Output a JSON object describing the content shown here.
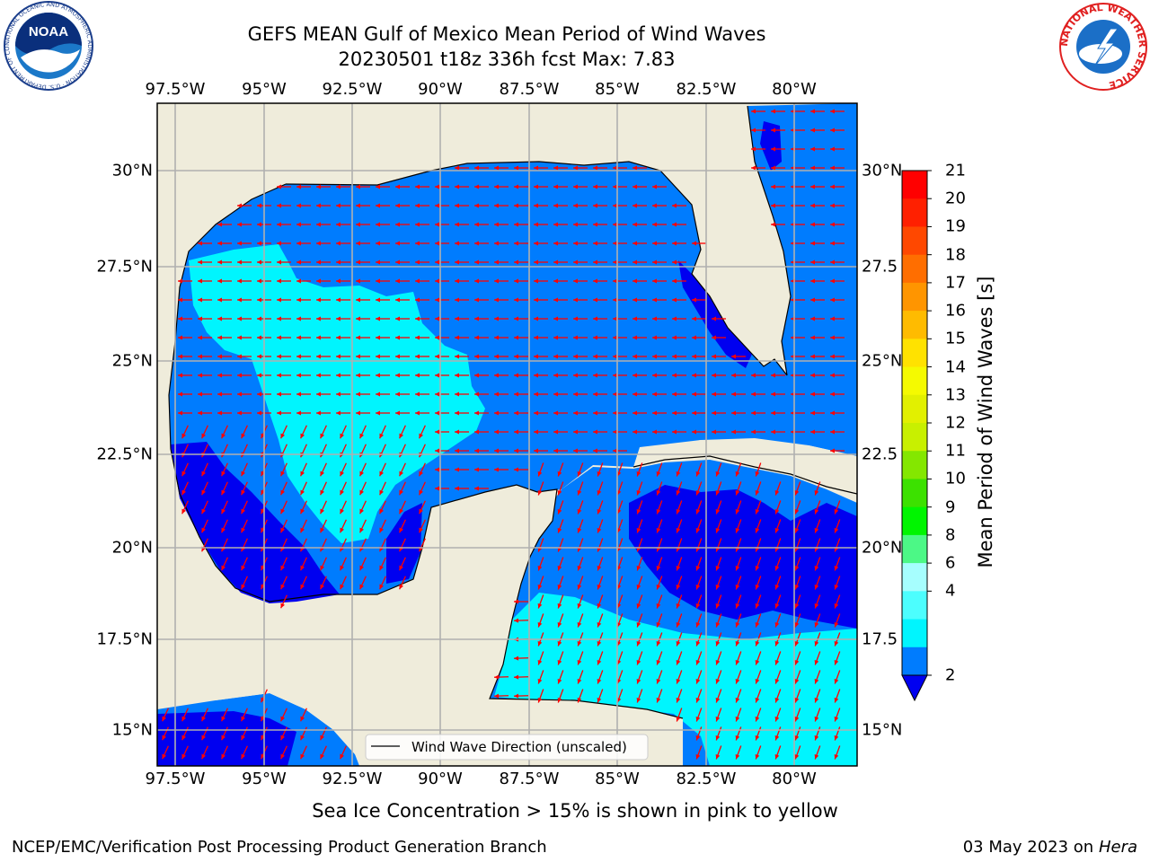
{
  "title": {
    "line1": "GEFS MEAN Gulf of Mexico Mean Period of Wind Waves",
    "line2": "20230501 t18z 336h fcst   Max: 7.83"
  },
  "axes": {
    "lon_ticks": [
      "97.5°W",
      "95°W",
      "92.5°W",
      "90°W",
      "87.5°W",
      "85°W",
      "82.5°W",
      "80°W"
    ],
    "lat_ticks_left": [
      "30°N",
      "27.5°N",
      "25°N",
      "22.5°N",
      "20°N",
      "17.5°N",
      "15°N"
    ],
    "lat_ticks_right": [
      "30°N",
      "27.5",
      "25°N",
      "22.5",
      "20°N",
      "17.5",
      "15°N"
    ]
  },
  "legend": {
    "label": "Wind Wave Direction (unscaled)"
  },
  "colorbar": {
    "title": "Mean Period of Wind Waves [s]",
    "labels": [
      "21",
      "20",
      "19",
      "18",
      "17",
      "16",
      "15",
      "14",
      "13",
      "12",
      "11",
      "10",
      "9",
      "8",
      "6",
      "4",
      "2"
    ],
    "colors": [
      "#ff0000",
      "#ff2000",
      "#ff4800",
      "#ff6e00",
      "#ff9500",
      "#ffbb00",
      "#ffe200",
      "#f5fa00",
      "#e2f000",
      "#c8f000",
      "#84e700",
      "#3ce100",
      "#00f500",
      "#4cf886",
      "#a6fefe",
      "#4cfefe",
      "#00f5fe",
      "#007cfe"
    ],
    "extend_color": "#0000f0"
  },
  "caption": "Sea Ice Concentration > 15% is shown in pink to yellow",
  "footer": {
    "left": "NCEP/EMC/Verification Post Processing Product Generation Branch",
    "right_date": "03 May 2023 on",
    "right_host": "Hera"
  },
  "logos": {
    "noaa_text": "NOAA",
    "noaa_ring": "NATIONAL OCEANIC AND ATMOSPHERIC ADMINISTRATION · U.S. DEPARTMENT OF COMMERCE",
    "nws_ring": "NATIONAL WEATHER SERVICE"
  },
  "map_colors": {
    "land": "#efecdb",
    "period_2_4": "#007cfe",
    "period_lt_2": "#0000f0",
    "period_4_6": "#00f5fe",
    "arrows": "#ff0000"
  }
}
